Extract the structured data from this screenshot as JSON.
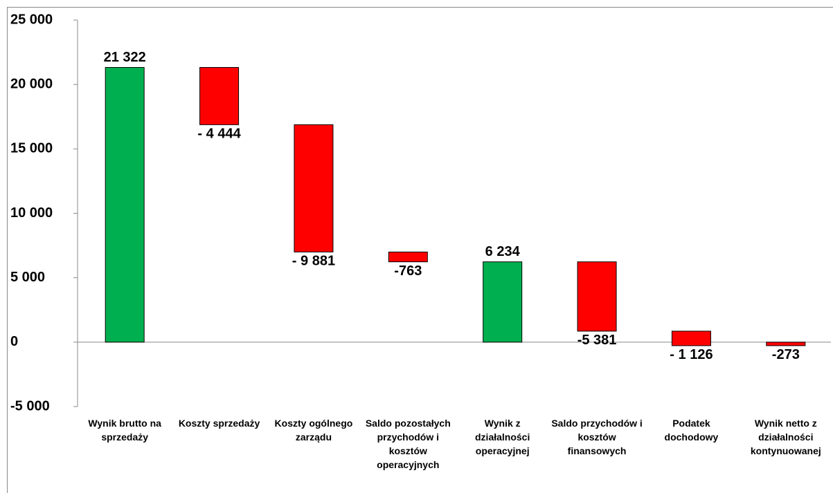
{
  "chart_data": {
    "type": "waterfall",
    "categories": [
      "Wynik brutto na sprzedaży",
      "Koszty sprzedaży",
      "Koszty ogólnego zarządu",
      "Saldo pozostałych przychodów i kosztów operacyjnych",
      "Wynik z działalności operacyjnej",
      "Saldo przychodów i kosztów finansowych",
      "Podatek dochodowy",
      "Wynik netto z działalności kontynuowanej"
    ],
    "values": [
      21322,
      -4444,
      -9881,
      -763,
      6234,
      -5381,
      -1126,
      -273
    ],
    "value_labels": [
      "21 322",
      "- 4 444",
      "- 9 881",
      "-763",
      "6 234",
      "-5 381",
      "- 1 126",
      "-273"
    ],
    "colors": [
      "#00b050",
      "#ff0000",
      "#ff0000",
      "#ff0000",
      "#00b050",
      "#ff0000",
      "#ff0000",
      "#ff0000"
    ],
    "ylim": [
      -5000,
      25000
    ],
    "yticks": [
      {
        "value": -5000,
        "label": "-5 000"
      },
      0,
      {
        "value": 5000,
        "label": "5 000"
      },
      {
        "value": 10000,
        "label": "10 000"
      },
      {
        "value": 15000,
        "label": "15 000"
      },
      {
        "value": 20000,
        "label": "20 000"
      },
      {
        "value": 25000,
        "label": "25 000"
      }
    ]
  }
}
